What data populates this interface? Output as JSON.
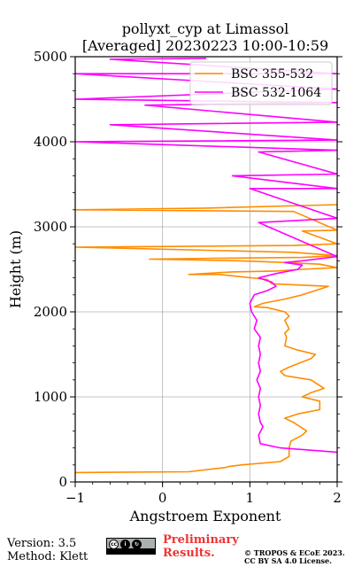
{
  "chart_data": {
    "type": "line",
    "title": "pollyxt_cyp at Limassol",
    "subtitle": "[Averaged] 20230223 10:00-10:59",
    "xlabel": "Angstroem Exponent",
    "ylabel": "Height (m)",
    "xlim": [
      -1,
      2
    ],
    "ylim": [
      0,
      5000
    ],
    "xticks": [
      -1,
      0,
      1,
      2
    ],
    "yticks": [
      0,
      1000,
      2000,
      3000,
      4000,
      5000
    ],
    "grid": true,
    "legend_position": "top-right",
    "series": [
      {
        "name": "BSC 355-532",
        "color": "#ff8c00",
        "points": [
          [
            -1.0,
            110
          ],
          [
            0.3,
            120
          ],
          [
            0.72,
            170
          ],
          [
            0.75,
            180
          ],
          [
            0.9,
            200
          ],
          [
            1.35,
            240
          ],
          [
            1.45,
            300
          ],
          [
            1.45,
            400
          ],
          [
            1.47,
            480
          ],
          [
            1.6,
            550
          ],
          [
            1.65,
            600
          ],
          [
            1.5,
            700
          ],
          [
            1.4,
            750
          ],
          [
            1.55,
            800
          ],
          [
            1.8,
            850
          ],
          [
            1.8,
            950
          ],
          [
            1.6,
            1000
          ],
          [
            1.7,
            1050
          ],
          [
            1.85,
            1100
          ],
          [
            1.7,
            1200
          ],
          [
            1.4,
            1250
          ],
          [
            1.35,
            1300
          ],
          [
            1.45,
            1350
          ],
          [
            1.7,
            1450
          ],
          [
            1.75,
            1500
          ],
          [
            1.55,
            1550
          ],
          [
            1.4,
            1600
          ],
          [
            1.42,
            1700
          ],
          [
            1.4,
            1750
          ],
          [
            1.45,
            1800
          ],
          [
            1.4,
            1900
          ],
          [
            1.45,
            1950
          ],
          [
            1.4,
            2000
          ],
          [
            1.2,
            2050
          ],
          [
            1.05,
            2060
          ],
          [
            1.15,
            2100
          ],
          [
            1.4,
            2150
          ],
          [
            1.6,
            2200
          ],
          [
            1.75,
            2250
          ],
          [
            1.9,
            2300
          ],
          [
            1.25,
            2330
          ],
          [
            1.2,
            2380
          ],
          [
            0.65,
            2440
          ],
          [
            0.3,
            2440
          ],
          [
            0.8,
            2470
          ],
          [
            1.3,
            2480
          ],
          [
            1.6,
            2500
          ],
          [
            2.0,
            2520
          ],
          [
            1.8,
            2560
          ],
          [
            1.4,
            2580
          ],
          [
            0.9,
            2600
          ],
          [
            -0.15,
            2620
          ],
          [
            0.6,
            2630
          ],
          [
            1.6,
            2640
          ],
          [
            2.0,
            2660
          ],
          [
            1.5,
            2700
          ],
          [
            -1.0,
            2760
          ],
          [
            1.5,
            2780
          ],
          [
            2.0,
            2800
          ],
          [
            1.6,
            2950
          ],
          [
            2.0,
            2960
          ],
          [
            1.5,
            3180
          ],
          [
            -1.0,
            3200
          ],
          [
            0.5,
            3220
          ],
          [
            2.0,
            3260
          ]
        ]
      },
      {
        "name": "BSC 532-1064",
        "color": "#ff00ff",
        "points": [
          [
            2.0,
            350
          ],
          [
            1.35,
            400
          ],
          [
            1.12,
            450
          ],
          [
            1.1,
            550
          ],
          [
            1.15,
            650
          ],
          [
            1.12,
            700
          ],
          [
            1.1,
            800
          ],
          [
            1.12,
            900
          ],
          [
            1.1,
            1000
          ],
          [
            1.12,
            1100
          ],
          [
            1.08,
            1200
          ],
          [
            1.12,
            1300
          ],
          [
            1.1,
            1400
          ],
          [
            1.12,
            1500
          ],
          [
            1.1,
            1600
          ],
          [
            1.12,
            1700
          ],
          [
            1.05,
            1800
          ],
          [
            1.08,
            1900
          ],
          [
            1.02,
            2000
          ],
          [
            1.0,
            2100
          ],
          [
            1.05,
            2200
          ],
          [
            1.2,
            2250
          ],
          [
            1.3,
            2300
          ],
          [
            1.25,
            2350
          ],
          [
            1.1,
            2400
          ],
          [
            1.3,
            2450
          ],
          [
            1.55,
            2500
          ],
          [
            1.6,
            2550
          ],
          [
            1.4,
            2580
          ],
          [
            1.6,
            2600
          ],
          [
            2.0,
            2650
          ],
          [
            1.1,
            3050
          ],
          [
            2.0,
            3100
          ],
          [
            1.0,
            3450
          ],
          [
            2.0,
            3450
          ],
          [
            0.8,
            3600
          ],
          [
            2.0,
            3620
          ],
          [
            1.1,
            3880
          ],
          [
            2.0,
            3900
          ],
          [
            -1.0,
            4000
          ],
          [
            2.0,
            4020
          ],
          [
            -0.6,
            4200
          ],
          [
            2.0,
            4230
          ],
          [
            -0.2,
            4430
          ],
          [
            2.0,
            4460
          ],
          [
            -1.0,
            4500
          ],
          [
            2.0,
            4620
          ],
          [
            -1.0,
            4800
          ],
          [
            2.0,
            4800
          ],
          [
            -0.6,
            4970
          ],
          [
            0.5,
            4980
          ]
        ]
      }
    ]
  },
  "footer": {
    "version": "Version: 3.5",
    "method": "Method: Klett",
    "preliminary_line1": "Preliminary",
    "preliminary_line2": "Results.",
    "copyright": "© TROPOS & ECoE 2023.",
    "license": "CC BY SA 4.0 License.",
    "badge_icon": "cc-by-sa-badge-icon"
  }
}
